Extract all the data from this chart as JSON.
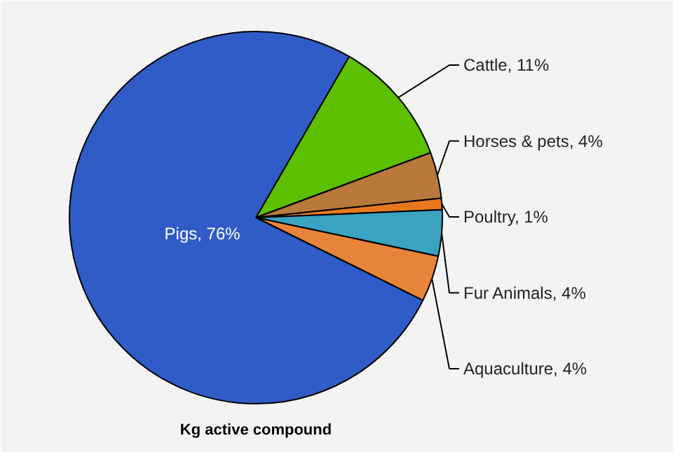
{
  "chart_data": {
    "type": "pie",
    "title": "Kg active compound",
    "categories": [
      "Cattle",
      "Horses & pets",
      "Poultry",
      "Fur Animals",
      "Aquaculture",
      "Pigs"
    ],
    "values": [
      11,
      4,
      1,
      4,
      4,
      76
    ],
    "value_labels": [
      "11%",
      "4%",
      "1%",
      "4%",
      "4%",
      "76%"
    ],
    "colors": [
      "#5cbf00",
      "#b8793a",
      "#e8781e",
      "#3aa3c0",
      "#e8833a",
      "#2f5cc6"
    ]
  }
}
